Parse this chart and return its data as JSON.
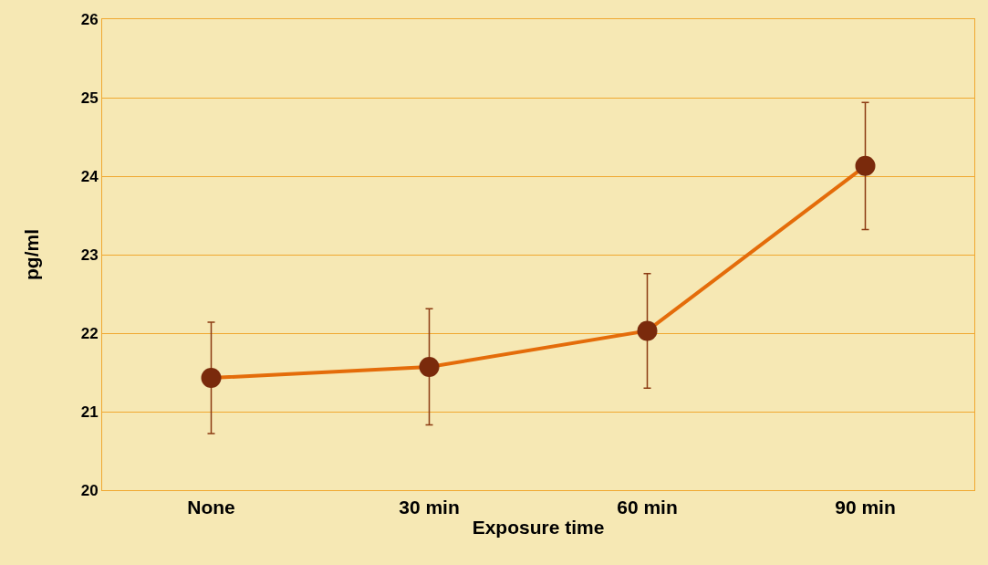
{
  "chart_data": {
    "type": "line",
    "xlabel": "Exposure time",
    "ylabel": "pg/ml",
    "categories": [
      "None",
      "30 min",
      "60 min",
      "90 min"
    ],
    "series": [
      {
        "color": "#e46c0a",
        "values": [
          21.43,
          21.57,
          22.03,
          24.13
        ],
        "errors": [
          0.71,
          0.74,
          0.73,
          0.81
        ]
      }
    ],
    "ylim": [
      20,
      26
    ],
    "yticks": [
      20,
      21,
      22,
      23,
      24,
      25,
      26
    ],
    "grid": "y",
    "marker": "circle",
    "line_style": "solid"
  }
}
